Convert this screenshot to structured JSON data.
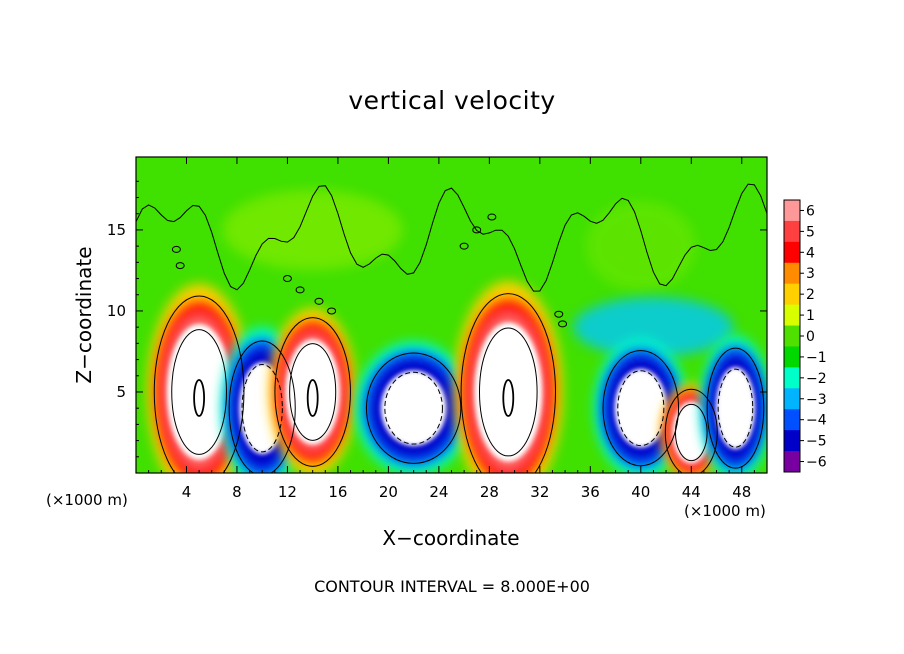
{
  "chart_data": {
    "type": "heatmap",
    "title": "vertical velocity",
    "xlabel": "X−coordinate",
    "ylabel": "Z−coordinate",
    "x_unit": "(×1000 m)",
    "x_unit_right": "(×1000 m)",
    "footer": "CONTOUR INTERVAL = 8.000E+00",
    "xlim": [
      0,
      50
    ],
    "ylim": [
      0,
      19.5
    ],
    "x_ticks": [
      4,
      8,
      12,
      16,
      20,
      24,
      28,
      32,
      36,
      40,
      44,
      48
    ],
    "y_ticks": [
      5,
      10,
      15
    ],
    "colorbar": {
      "levels": [
        6,
        5,
        4,
        3,
        2,
        1,
        0,
        -1,
        -2,
        -3,
        -4,
        -5,
        -6
      ],
      "labels": [
        "6",
        "5",
        "4",
        "3",
        "2",
        "1",
        "0",
        "−1",
        "−2",
        "−3",
        "−4",
        "−5",
        "−6"
      ],
      "colors": [
        "#ff9999",
        "#ff4040",
        "#ff0000",
        "#ff8c00",
        "#ffd000",
        "#d8ff00",
        "#50e000",
        "#00d800",
        "#00ffc8",
        "#00b4ff",
        "#0050ff",
        "#0000c8",
        "#7800a0"
      ]
    },
    "features": [
      {
        "kind": "updraft",
        "x": 5,
        "z": 5,
        "w_max": 30
      },
      {
        "kind": "downdraft",
        "x": 10,
        "z": 4,
        "w_min": -20
      },
      {
        "kind": "updraft",
        "x": 14,
        "z": 5,
        "w_max": 22
      },
      {
        "kind": "downdraft",
        "x": 22,
        "z": 4,
        "w_min": -18
      },
      {
        "kind": "updraft",
        "x": 29.5,
        "z": 5,
        "w_max": 30
      },
      {
        "kind": "downdraft",
        "x": 40,
        "z": 4,
        "w_min": -20
      },
      {
        "kind": "updraft",
        "x": 44,
        "z": 2.5,
        "w_max": 12
      },
      {
        "kind": "downdraft",
        "x": 47.5,
        "z": 4,
        "w_min": -18
      }
    ],
    "colors": {
      "background": "#40e000",
      "upper_field": "#34dd10"
    }
  }
}
